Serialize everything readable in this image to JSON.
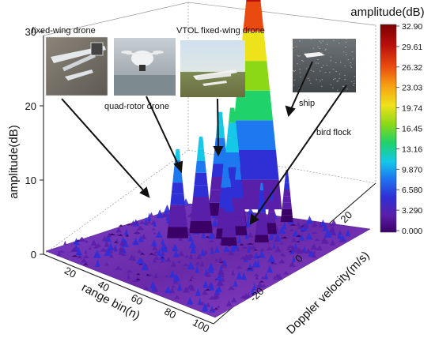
{
  "chart_data": {
    "type": "surface3d",
    "zlabel": "amplitude(dB)",
    "xlabel": "range bin(n)",
    "ylabel": "Doppler velocity(m/s)",
    "z_ticks": [
      "0",
      "10",
      "20",
      "30"
    ],
    "range_ticks": [
      "20",
      "40",
      "60",
      "80",
      "100"
    ],
    "doppler_ticks": [
      "20",
      "0",
      "-20"
    ],
    "colorbar": {
      "title": "amplitude(dB)",
      "min": 0.0,
      "max": 32.9,
      "ticks": [
        "32.90",
        "29.61",
        "26.32",
        "23.03",
        "19.74",
        "16.45",
        "13.16",
        "9.870",
        "6.580",
        "3.290",
        "0.000"
      ]
    },
    "peaks": [
      {
        "label": "fixed-wing drone",
        "amplitude": 12
      },
      {
        "label": "quad-rotor drone",
        "amplitude": 13
      },
      {
        "label": "VTOL fixed-wing drone",
        "amplitude": 14
      },
      {
        "label": "bird flock",
        "amplitude": 6
      },
      {
        "label": "ship",
        "amplitude": 32
      }
    ],
    "extra_peaks": [
      9,
      10,
      11,
      8,
      7,
      16
    ]
  },
  "colors": {
    "colormap": [
      "#3a0066",
      "#5a1fa8",
      "#2f2fd6",
      "#1e78f0",
      "#15c8e8",
      "#1fd26a",
      "#8cd817",
      "#eee21a",
      "#f7a413",
      "#e94a10",
      "#b9100c",
      "#7a0000"
    ]
  },
  "icons": {
    "fixed-wing": "fixed-wing-drone-photo",
    "quad": "quad-rotor-drone-photo",
    "vtol": "vtol-drone-photo",
    "ship": "ship-radar-photo"
  }
}
